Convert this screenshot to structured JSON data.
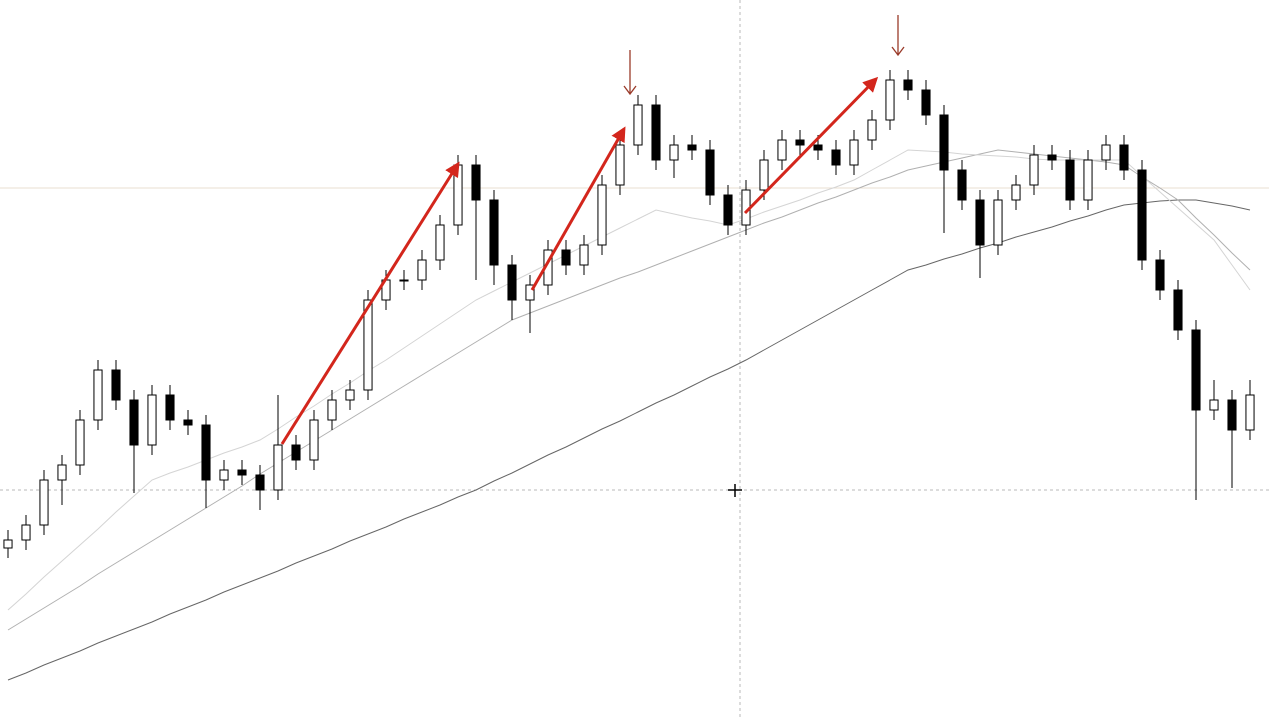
{
  "chart_data": {
    "type": "candlestick",
    "ylim": [
      0,
      718
    ],
    "up_color": "#ffffff",
    "down_color": "#000000",
    "edge_color": "#000000",
    "open": [
      170,
      178,
      193,
      238,
      253,
      298,
      348,
      318,
      273,
      323,
      298,
      293,
      238,
      248,
      243,
      228,
      273,
      258,
      298,
      318,
      328,
      418,
      438,
      438,
      458,
      493,
      553,
      518,
      453,
      418,
      433,
      468,
      453,
      473,
      533,
      573,
      613,
      558,
      573,
      568,
      523,
      493,
      528,
      558,
      578,
      573,
      568,
      553,
      578,
      598,
      638,
      628,
      603,
      548,
      518,
      473,
      518,
      533,
      563,
      558,
      518,
      558,
      573,
      548,
      458,
      428,
      388,
      308,
      318,
      288
    ],
    "high": [
      188,
      203,
      248,
      263,
      308,
      358,
      358,
      328,
      333,
      333,
      308,
      303,
      258,
      258,
      253,
      323,
      283,
      308,
      328,
      338,
      428,
      448,
      448,
      468,
      503,
      563,
      563,
      528,
      463,
      443,
      478,
      478,
      483,
      543,
      583,
      623,
      623,
      583,
      583,
      578,
      533,
      538,
      568,
      588,
      588,
      583,
      578,
      588,
      608,
      648,
      648,
      638,
      613,
      558,
      528,
      528,
      543,
      573,
      573,
      568,
      568,
      583,
      583,
      558,
      468,
      438,
      398,
      338,
      328,
      338
    ],
    "low": [
      160,
      168,
      183,
      213,
      243,
      288,
      308,
      225,
      263,
      288,
      283,
      210,
      228,
      233,
      208,
      218,
      248,
      248,
      288,
      308,
      318,
      408,
      428,
      428,
      448,
      483,
      438,
      433,
      398,
      385,
      423,
      443,
      443,
      463,
      523,
      563,
      548,
      540,
      558,
      513,
      483,
      483,
      518,
      548,
      563,
      558,
      543,
      543,
      568,
      588,
      618,
      593,
      485,
      508,
      440,
      463,
      508,
      523,
      548,
      508,
      508,
      548,
      538,
      448,
      418,
      378,
      218,
      298,
      230,
      278
    ],
    "close": [
      178,
      193,
      238,
      253,
      298,
      348,
      318,
      273,
      323,
      298,
      293,
      238,
      248,
      243,
      228,
      273,
      258,
      298,
      318,
      328,
      418,
      438,
      438,
      458,
      493,
      553,
      518,
      453,
      418,
      433,
      468,
      453,
      473,
      533,
      573,
      613,
      558,
      573,
      568,
      523,
      493,
      528,
      558,
      578,
      573,
      568,
      553,
      578,
      598,
      638,
      628,
      603,
      548,
      518,
      473,
      518,
      533,
      563,
      558,
      518,
      558,
      573,
      548,
      458,
      428,
      388,
      308,
      318,
      288,
      323
    ],
    "series": [
      {
        "color": "#666666",
        "values": [
          38,
          45,
          53,
          60,
          67,
          75,
          82,
          89,
          96,
          104,
          111,
          118,
          126,
          133,
          140,
          147,
          155,
          162,
          169,
          177,
          184,
          191,
          199,
          206,
          213,
          221,
          228,
          237,
          245,
          254,
          263,
          271,
          280,
          289,
          297,
          306,
          315,
          323,
          332,
          341,
          349,
          358,
          368,
          378,
          388,
          398,
          408,
          418,
          428,
          438,
          448,
          453,
          459,
          464,
          470,
          475,
          481,
          486,
          491,
          497,
          502,
          508,
          513,
          515,
          517,
          518,
          518,
          515,
          512,
          508
        ]
      },
      {
        "color": "#b0b0b0",
        "values": [
          88,
          99,
          110,
          121,
          132,
          144,
          155,
          166,
          177,
          188,
          199,
          210,
          221,
          232,
          244,
          255,
          266,
          277,
          288,
          299,
          310,
          321,
          332,
          343,
          354,
          365,
          376,
          387,
          398,
          405,
          412,
          419,
          426,
          433,
          440,
          446,
          453,
          460,
          467,
          474,
          481,
          488,
          495,
          501,
          508,
          515,
          521,
          528,
          535,
          541,
          548,
          552,
          556,
          560,
          564,
          568,
          566,
          564,
          562,
          560,
          558,
          556,
          553,
          541,
          530,
          518,
          500,
          483,
          465,
          448
        ]
      },
      {
        "color": "#d4d4d4",
        "values": [
          108,
          124,
          141,
          157,
          173,
          189,
          206,
          222,
          238,
          245,
          251,
          258,
          265,
          271,
          278,
          289,
          301,
          312,
          324,
          335,
          347,
          358,
          370,
          382,
          394,
          406,
          418,
          427,
          436,
          445,
          454,
          463,
          472,
          481,
          490,
          499,
          508,
          504,
          500,
          497,
          493,
          499,
          506,
          512,
          518,
          525,
          531,
          538,
          548,
          558,
          568,
          567,
          566,
          564,
          563,
          562,
          561,
          559,
          558,
          558,
          558,
          558,
          558,
          542,
          526,
          510,
          494,
          478,
          453,
          428
        ]
      }
    ]
  }
}
